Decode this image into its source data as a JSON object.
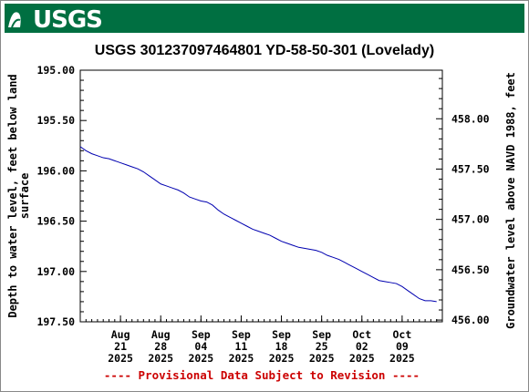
{
  "header": {
    "logo_text": "USGS",
    "brand_color": "#006f41"
  },
  "chart_data": {
    "type": "line",
    "title": "USGS 301237097464801 YD-58-50-301 (Lovelady)",
    "ylabel": "Depth to water level, feet below land surface",
    "ylabel_lines": [
      "Depth to water level, feet below land",
      "surface"
    ],
    "y2label": "Groundwater level above NAVD 1988, feet",
    "footer": "---- Provisional Data Subject to Revision ----",
    "footer_color": "#cc0000",
    "line_color": "#0000b0",
    "xlim": [
      "2025-08-14",
      "2025-10-16"
    ],
    "ylim": [
      195.0,
      197.5
    ],
    "y_inverted": true,
    "y2lim": [
      458.4825,
      455.9825
    ],
    "yticks": [
      "195.00",
      "195.50",
      "196.00",
      "196.50",
      "197.00",
      "197.50"
    ],
    "y2ticks": [
      "458.00",
      "457.50",
      "457.00",
      "456.50",
      "456.00"
    ],
    "xticks": [
      {
        "date": "2025-08-21",
        "month": "Aug",
        "day": "21",
        "year": "2025"
      },
      {
        "date": "2025-08-28",
        "month": "Aug",
        "day": "28",
        "year": "2025"
      },
      {
        "date": "2025-09-04",
        "month": "Sep",
        "day": "04",
        "year": "2025"
      },
      {
        "date": "2025-09-11",
        "month": "Sep",
        "day": "11",
        "year": "2025"
      },
      {
        "date": "2025-09-18",
        "month": "Sep",
        "day": "18",
        "year": "2025"
      },
      {
        "date": "2025-09-25",
        "month": "Sep",
        "day": "25",
        "year": "2025"
      },
      {
        "date": "2025-10-02",
        "month": "Oct",
        "day": "02",
        "year": "2025"
      },
      {
        "date": "2025-10-09",
        "month": "Oct",
        "day": "09",
        "year": "2025"
      }
    ],
    "series": [
      {
        "points": [
          [
            "2025-08-14",
            195.76
          ],
          [
            "2025-08-15",
            195.8
          ],
          [
            "2025-08-16",
            195.83
          ],
          [
            "2025-08-17",
            195.85
          ],
          [
            "2025-08-18",
            195.87
          ],
          [
            "2025-08-19",
            195.88
          ],
          [
            "2025-08-20",
            195.9
          ],
          [
            "2025-08-21",
            195.92
          ],
          [
            "2025-08-22",
            195.94
          ],
          [
            "2025-08-23",
            195.96
          ],
          [
            "2025-08-24",
            195.98
          ],
          [
            "2025-08-25",
            196.01
          ],
          [
            "2025-08-26",
            196.05
          ],
          [
            "2025-08-27",
            196.09
          ],
          [
            "2025-08-28",
            196.13
          ],
          [
            "2025-08-29",
            196.15
          ],
          [
            "2025-08-30",
            196.17
          ],
          [
            "2025-08-31",
            196.19
          ],
          [
            "2025-09-01",
            196.22
          ],
          [
            "2025-09-02",
            196.26
          ],
          [
            "2025-09-03",
            196.28
          ],
          [
            "2025-09-04",
            196.3
          ],
          [
            "2025-09-05",
            196.31
          ],
          [
            "2025-09-06",
            196.34
          ],
          [
            "2025-09-07",
            196.39
          ],
          [
            "2025-09-08",
            196.43
          ],
          [
            "2025-09-09",
            196.46
          ],
          [
            "2025-09-10",
            196.49
          ],
          [
            "2025-09-11",
            196.52
          ],
          [
            "2025-09-12",
            196.55
          ],
          [
            "2025-09-13",
            196.58
          ],
          [
            "2025-09-14",
            196.6
          ],
          [
            "2025-09-15",
            196.62
          ],
          [
            "2025-09-16",
            196.64
          ],
          [
            "2025-09-17",
            196.67
          ],
          [
            "2025-09-18",
            196.7
          ],
          [
            "2025-09-19",
            196.72
          ],
          [
            "2025-09-20",
            196.74
          ],
          [
            "2025-09-21",
            196.76
          ],
          [
            "2025-09-22",
            196.77
          ],
          [
            "2025-09-23",
            196.78
          ],
          [
            "2025-09-24",
            196.79
          ],
          [
            "2025-09-25",
            196.81
          ],
          [
            "2025-09-26",
            196.84
          ],
          [
            "2025-09-27",
            196.86
          ],
          [
            "2025-09-28",
            196.88
          ],
          [
            "2025-09-29",
            196.91
          ],
          [
            "2025-09-30",
            196.94
          ],
          [
            "2025-10-01",
            196.97
          ],
          [
            "2025-10-02",
            197.0
          ],
          [
            "2025-10-03",
            197.03
          ],
          [
            "2025-10-04",
            197.06
          ],
          [
            "2025-10-05",
            197.09
          ],
          [
            "2025-10-06",
            197.1
          ],
          [
            "2025-10-07",
            197.11
          ],
          [
            "2025-10-08",
            197.12
          ],
          [
            "2025-10-09",
            197.15
          ],
          [
            "2025-10-10",
            197.19
          ],
          [
            "2025-10-11",
            197.23
          ],
          [
            "2025-10-12",
            197.27
          ],
          [
            "2025-10-13",
            197.29
          ],
          [
            "2025-10-14",
            197.29
          ],
          [
            "2025-10-15",
            197.3
          ]
        ]
      }
    ]
  }
}
